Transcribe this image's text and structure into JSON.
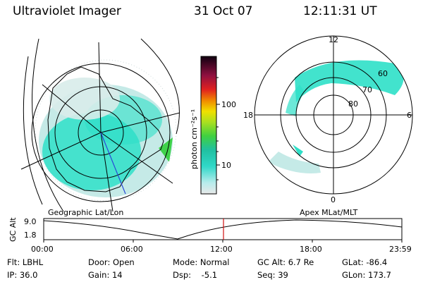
{
  "header": {
    "title": "Ultraviolet Imager",
    "date": "31 Oct 07",
    "time": "12:11:31 UT"
  },
  "colorbar": {
    "unit": "photon cm⁻²s⁻¹",
    "ticks": [
      "100",
      "10"
    ]
  },
  "polar_plot": {
    "mlt_labels": {
      "top": "12",
      "left": "18",
      "right": "6",
      "bottom": "0"
    },
    "lat_labels": [
      "60",
      "70",
      "80"
    ]
  },
  "panels": {
    "left_caption": "Geographic Lat/Lon",
    "right_caption": "Apex  MLat/MLT"
  },
  "altitude_plot": {
    "ylabel": "GC Alt",
    "y_ticks": [
      "9.0",
      "1.8"
    ],
    "x_ticks": [
      "00:00",
      "06:00",
      "12:00",
      "18:00",
      "23:59"
    ],
    "current_time_marker": "12:11"
  },
  "info": {
    "row1": [
      {
        "label": "Flt: LBHL"
      },
      {
        "label": "Door: Open"
      },
      {
        "label": "Mode: Normal"
      },
      {
        "label": "GC Alt: 6.7 Re"
      },
      {
        "label": "GLat: -86.4"
      }
    ],
    "row2": [
      {
        "label": "IP: 36.0"
      },
      {
        "label": "Gain: 14"
      },
      {
        "label": "Dsp:    -5.1"
      },
      {
        "label": "Seq: 39"
      },
      {
        "label": "GLon: 173.7"
      }
    ]
  },
  "colors": {
    "aurora_cyan": "#2ee0c8",
    "aurora_light": "#bfe8e4",
    "aurora_green": "#3fd24a",
    "marker_red": "#d01010",
    "track_blue": "#2a4ad8"
  }
}
